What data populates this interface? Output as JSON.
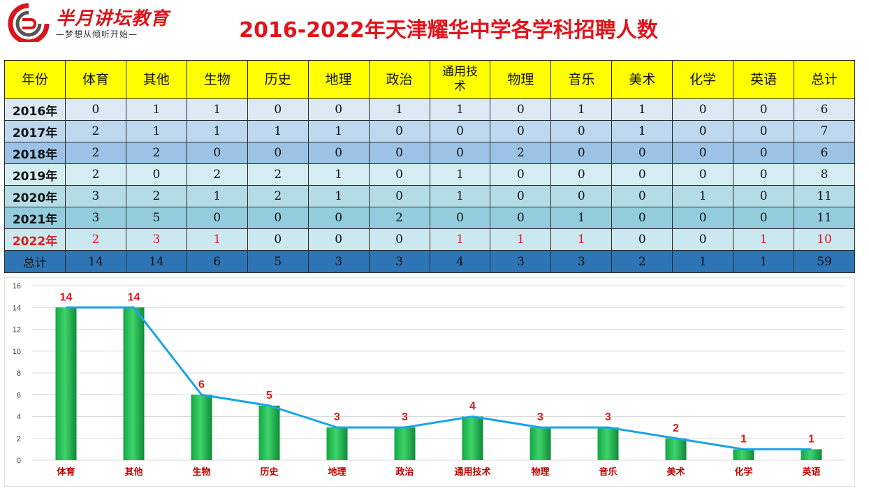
{
  "logo": {
    "title": "半月讲坛教育",
    "subtitle": "—梦想从倾听开始—"
  },
  "page_title": "2016-2022年天津耀华中学各学科招聘人数",
  "table": {
    "headers": [
      "年份",
      "体育",
      "其他",
      "生物",
      "历史",
      "地理",
      "政治",
      "通用技术",
      "物理",
      "音乐",
      "美术",
      "化学",
      "英语",
      "总计"
    ],
    "rows": [
      {
        "year": "2016年",
        "values": [
          "0",
          "1",
          "1",
          "0",
          "0",
          "1",
          "1",
          "0",
          "1",
          "1",
          "0",
          "0",
          "6"
        ]
      },
      {
        "year": "2017年",
        "values": [
          "2",
          "1",
          "1",
          "1",
          "1",
          "0",
          "0",
          "0",
          "0",
          "1",
          "0",
          "0",
          "7"
        ]
      },
      {
        "year": "2018年",
        "values": [
          "2",
          "2",
          "0",
          "0",
          "0",
          "0",
          "0",
          "2",
          "0",
          "0",
          "0",
          "0",
          "6"
        ]
      },
      {
        "year": "2019年",
        "values": [
          "2",
          "0",
          "2",
          "2",
          "1",
          "0",
          "1",
          "0",
          "0",
          "0",
          "0",
          "0",
          "8"
        ]
      },
      {
        "year": "2020年",
        "values": [
          "3",
          "2",
          "1",
          "2",
          "1",
          "0",
          "1",
          "0",
          "0",
          "0",
          "1",
          "0",
          "11"
        ]
      },
      {
        "year": "2021年",
        "values": [
          "3",
          "5",
          "0",
          "0",
          "0",
          "2",
          "0",
          "0",
          "1",
          "0",
          "0",
          "0",
          "11"
        ]
      },
      {
        "year": "2022年",
        "values": [
          "2",
          "3",
          "1",
          "0",
          "0",
          "0",
          "1",
          "1",
          "1",
          "0",
          "0",
          "1",
          "10"
        ]
      }
    ],
    "total_row": {
      "label": "总计",
      "values": [
        "14",
        "14",
        "6",
        "5",
        "3",
        "3",
        "4",
        "3",
        "3",
        "2",
        "1",
        "1",
        "59"
      ]
    },
    "highlight_2022_red": [
      true,
      true,
      true,
      false,
      false,
      false,
      true,
      true,
      true,
      false,
      false,
      true,
      true
    ]
  },
  "colors": {
    "title": "#e0141b",
    "header_bg": "#ffff00",
    "total_bg": "#2e75b6",
    "bar": "#1fb64e",
    "line": "#1aa3e8",
    "data_label": "#e01a1a"
  },
  "chart_data": {
    "type": "bar",
    "categories": [
      "体育",
      "其他",
      "生物",
      "历史",
      "地理",
      "政治",
      "通用技术",
      "物理",
      "音乐",
      "美术",
      "化学",
      "英语"
    ],
    "series": [
      {
        "values": [
          14,
          14,
          6,
          5,
          3,
          3,
          4,
          3,
          3,
          2,
          1,
          1
        ]
      }
    ],
    "overlay_line": true,
    "ylim": [
      0,
      16
    ],
    "yticks": [
      0,
      2,
      4,
      6,
      8,
      10,
      12,
      14,
      16
    ],
    "grid": true,
    "legend": "none",
    "title": "",
    "xlabel": "",
    "ylabel": ""
  }
}
